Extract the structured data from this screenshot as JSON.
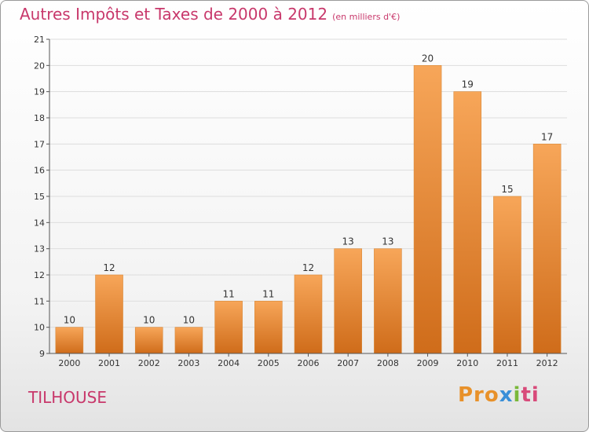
{
  "header": {
    "title": "Autres Impôts et Taxes de 2000 à 2012",
    "unit": "(en milliers d'€)"
  },
  "footer": {
    "commune": "TILHOUSE",
    "logo_text": "Proxiti"
  },
  "colors": {
    "title": "#c8386b",
    "bar_top": "#f7a659",
    "bar_bottom": "#cf6c1a",
    "axis": "#555555",
    "grid": "#dddddd"
  },
  "chart_data": {
    "type": "bar",
    "title": "Autres Impôts et Taxes de 2000 à 2012",
    "subtitle": "(en milliers d'€)",
    "xlabel": "",
    "ylabel": "",
    "categories": [
      "2000",
      "2001",
      "2002",
      "2003",
      "2004",
      "2005",
      "2006",
      "2007",
      "2008",
      "2009",
      "2010",
      "2011",
      "2012"
    ],
    "values": [
      10,
      12,
      10,
      10,
      11,
      11,
      12,
      13,
      13,
      20,
      19,
      15,
      17
    ],
    "ylim": [
      9,
      21
    ],
    "yticks": [
      9,
      10,
      11,
      12,
      13,
      14,
      15,
      16,
      17,
      18,
      19,
      20,
      21
    ],
    "grid": true,
    "legend": "none"
  }
}
